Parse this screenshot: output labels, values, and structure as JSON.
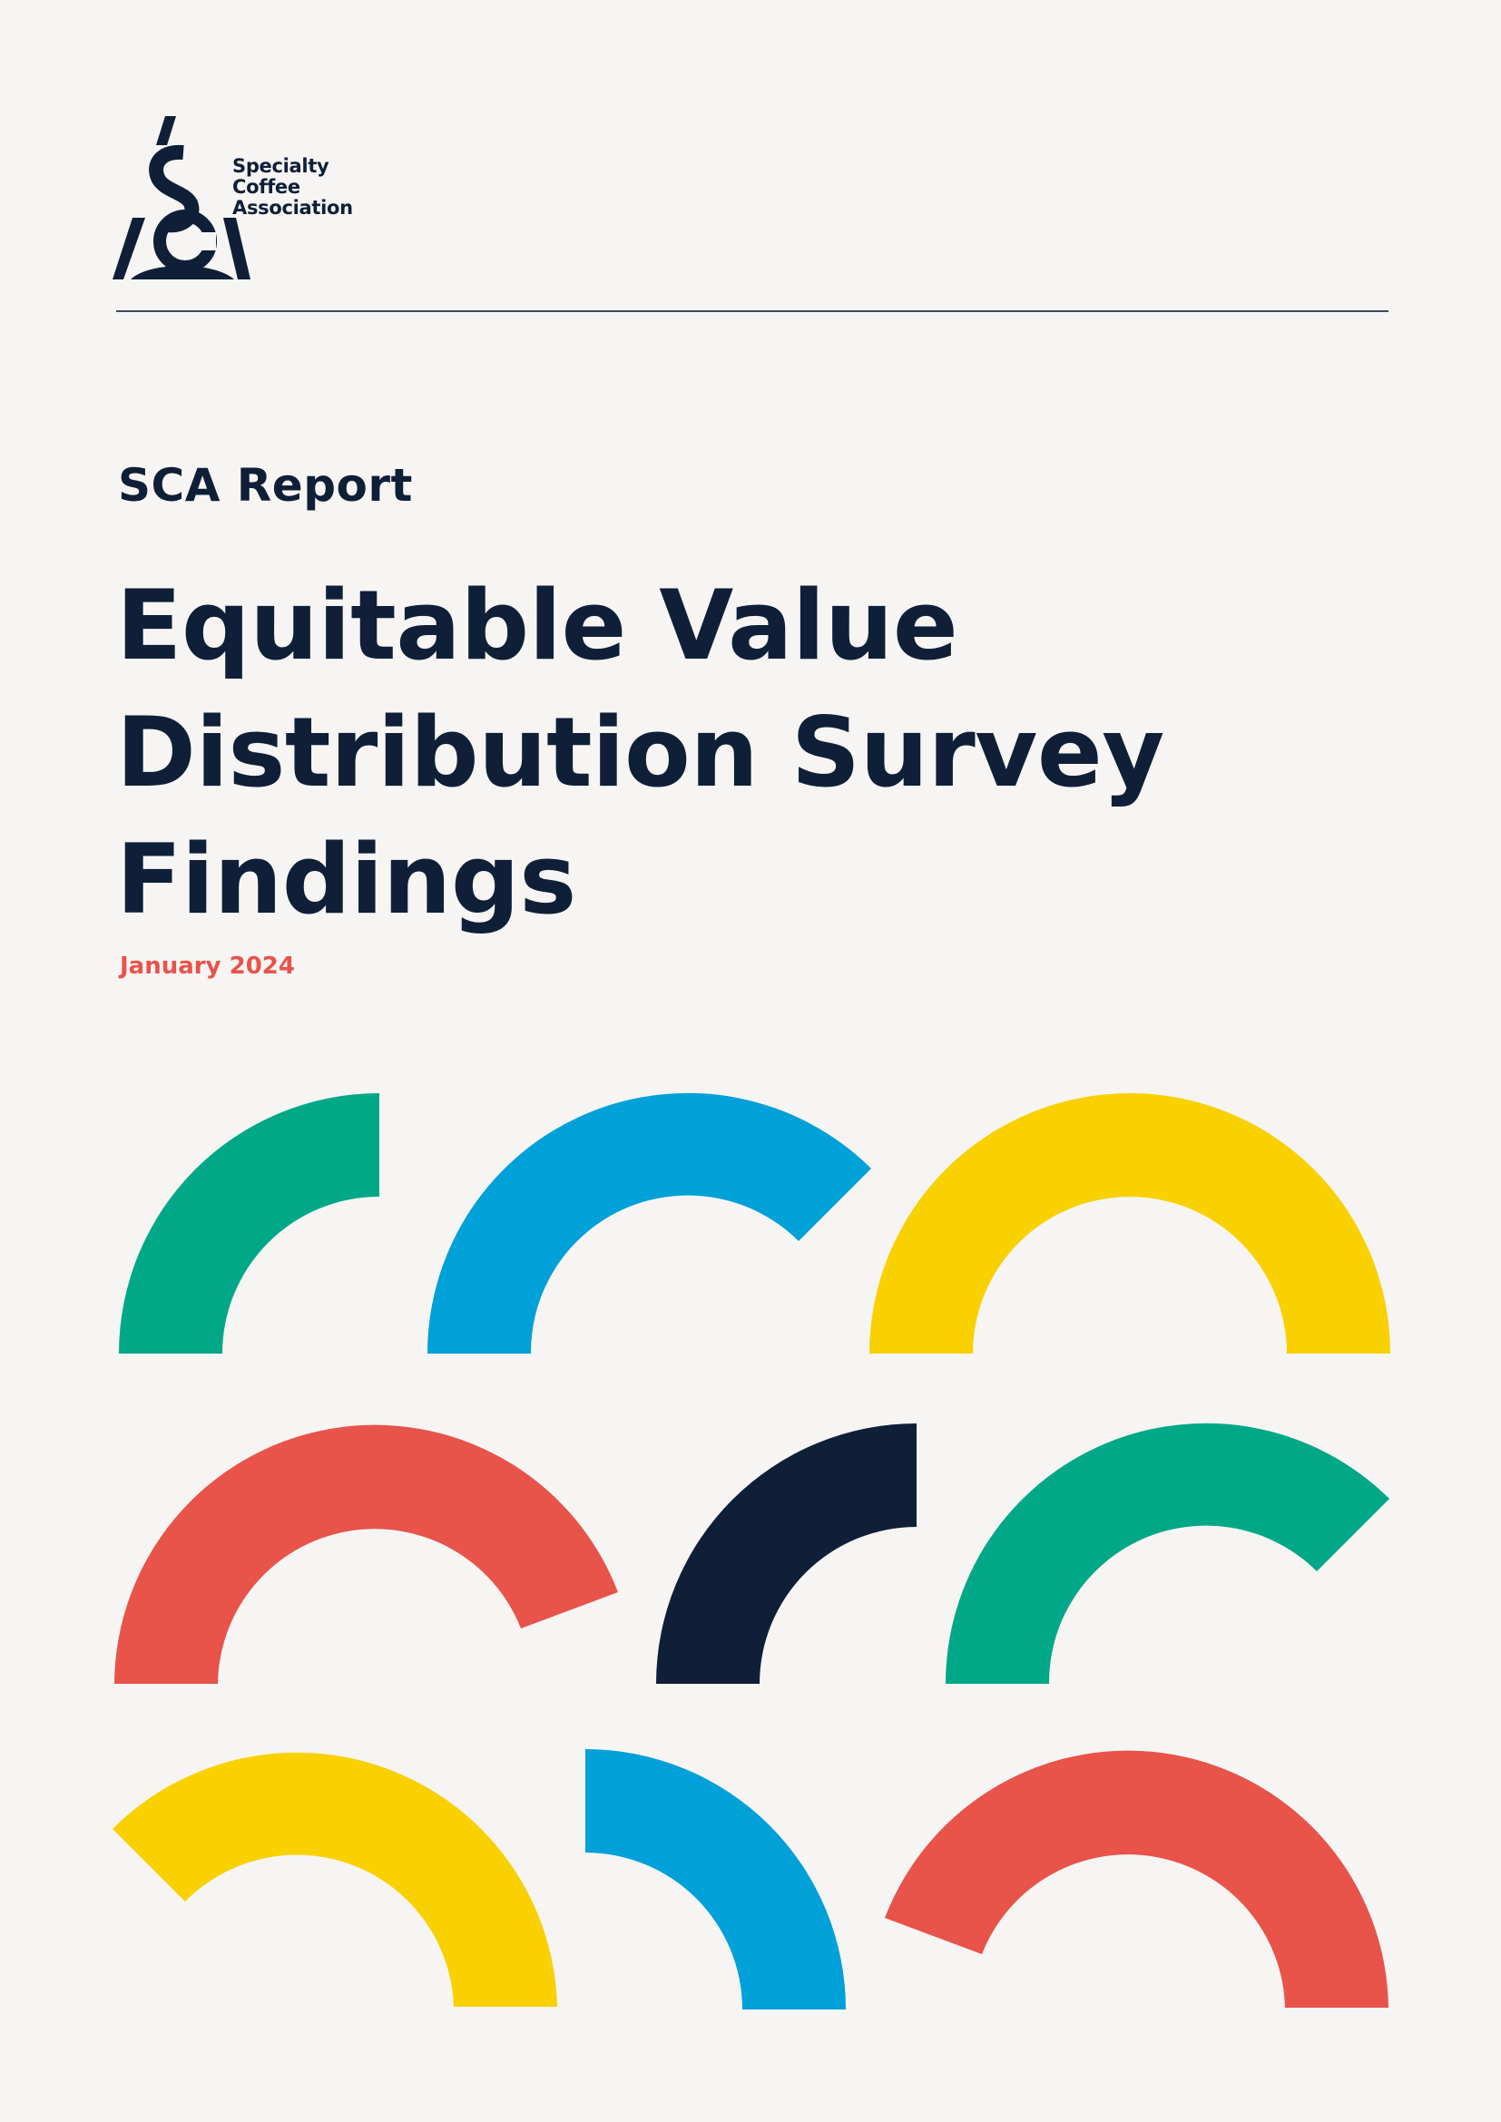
{
  "logo": {
    "line1": "Specialty",
    "line2": "Coffee",
    "line3": "Association"
  },
  "eyebrow": "SCA Report",
  "title": {
    "line1": "Equitable Value",
    "line2": "Distribution Survey",
    "line3": "Findings"
  },
  "date": "January 2024",
  "colors": {
    "navy": "#0f1f38",
    "green": "#00a887",
    "blue": "#00a0d8",
    "yellow": "#f9d000",
    "red": "#e8534a"
  }
}
